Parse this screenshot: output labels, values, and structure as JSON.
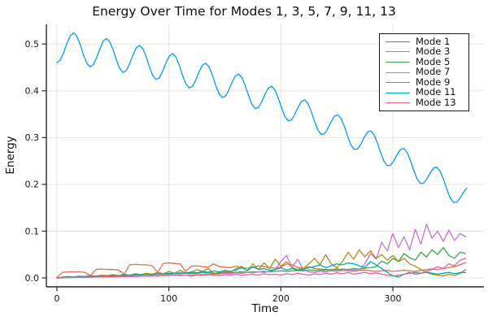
{
  "chart_data": {
    "type": "line",
    "title": "Energy Over Time for Modes 1, 3, 5, 7, 9, 11, 13",
    "xlabel": "Time",
    "ylabel": "Energy",
    "xlim": [
      -9.4,
      381.3
    ],
    "ylim": [
      -0.019,
      0.542
    ],
    "xticks": [
      0,
      100,
      200,
      300
    ],
    "yticks": [
      0.0,
      0.1,
      0.2,
      0.3,
      0.4,
      0.5
    ],
    "grid": true,
    "grid_color": "#e3e3e3",
    "axis_color": "#26262b",
    "background": "#ffffff",
    "legend_position": "top-right",
    "series": [
      {
        "name": "Mode 1",
        "color": "#009afa",
        "t0": 0,
        "dt": 2.95,
        "values": [
          0.4606,
          0.4653,
          0.4807,
          0.5007,
          0.5172,
          0.5237,
          0.5173,
          0.5001,
          0.4783,
          0.4598,
          0.4514,
          0.4556,
          0.4705,
          0.4898,
          0.5058,
          0.5118,
          0.5052,
          0.488,
          0.4663,
          0.4479,
          0.4392,
          0.4431,
          0.4574,
          0.4761,
          0.4914,
          0.4971,
          0.4903,
          0.4731,
          0.4514,
          0.433,
          0.4243,
          0.4277,
          0.4415,
          0.4595,
          0.4743,
          0.4795,
          0.4725,
          0.4553,
          0.4337,
          0.4154,
          0.4064,
          0.4095,
          0.4227,
          0.44,
          0.4542,
          0.459,
          0.4518,
          0.4346,
          0.4132,
          0.3948,
          0.3857,
          0.3884,
          0.401,
          0.4178,
          0.4314,
          0.4358,
          0.4284,
          0.4111,
          0.3898,
          0.3714,
          0.3622,
          0.3645,
          0.3766,
          0.3926,
          0.4057,
          0.4096,
          0.402,
          0.3848,
          0.3635,
          0.3452,
          0.3358,
          0.3378,
          0.3493,
          0.3647,
          0.3771,
          0.3807,
          0.3729,
          0.3557,
          0.3345,
          0.3162,
          0.3066,
          0.3082,
          0.3191,
          0.3339,
          0.3457,
          0.3489,
          0.3409,
          0.3237,
          0.3026,
          0.2843,
          0.2746,
          0.2758,
          0.2862,
          0.3003,
          0.3115,
          0.3143,
          0.3061,
          0.2889,
          0.2679,
          0.2496,
          0.2398,
          0.2406,
          0.2504,
          0.2639,
          0.2745,
          0.2769,
          0.2685,
          0.2513,
          0.2303,
          0.2121,
          0.2021,
          0.2026,
          0.2118,
          0.2246,
          0.2347,
          0.2366,
          0.228,
          0.2108,
          0.1899,
          0.1718,
          0.1616,
          0.1617,
          0.1703,
          0.1825,
          0.192
        ]
      },
      {
        "name": "Mode 3",
        "color": "#e36f47",
        "t0": 0,
        "dt": 5,
        "values": [
          0.001,
          0.012,
          0.013,
          0.013,
          0.013,
          0.012,
          0.005,
          0.018,
          0.019,
          0.018,
          0.018,
          0.017,
          0.008,
          0.028,
          0.029,
          0.028,
          0.028,
          0.026,
          0.012,
          0.031,
          0.032,
          0.031,
          0.03,
          0.014,
          0.025,
          0.026,
          0.024,
          0.023,
          0.03,
          0.024,
          0.023,
          0.022,
          0.025,
          0.022,
          0.021,
          0.022,
          0.026,
          0.024,
          0.022,
          0.021,
          0.023,
          0.03,
          0.028,
          0.022,
          0.021,
          0.024,
          0.02,
          0.019,
          0.018,
          0.017,
          0.02,
          0.016,
          0.015,
          0.014,
          0.016,
          0.017,
          0.015,
          0.014,
          0.015,
          0.016,
          0.014,
          0.015,
          0.016,
          0.015,
          0.014,
          0.016,
          0.018,
          0.019,
          0.018,
          0.02,
          0.022,
          0.024,
          0.028,
          0.033
        ]
      },
      {
        "name": "Mode 5",
        "color": "#3ea44e",
        "t0": 0,
        "dt": 5,
        "values": [
          0.0,
          0.001,
          0.001,
          0.002,
          0.002,
          0.002,
          0.003,
          0.003,
          0.004,
          0.004,
          0.004,
          0.005,
          0.005,
          0.006,
          0.006,
          0.007,
          0.007,
          0.007,
          0.008,
          0.008,
          0.008,
          0.009,
          0.009,
          0.01,
          0.01,
          0.01,
          0.011,
          0.011,
          0.01,
          0.011,
          0.012,
          0.011,
          0.012,
          0.013,
          0.012,
          0.013,
          0.013,
          0.014,
          0.013,
          0.014,
          0.015,
          0.014,
          0.015,
          0.016,
          0.015,
          0.017,
          0.016,
          0.017,
          0.016,
          0.018,
          0.017,
          0.019,
          0.018,
          0.02,
          0.019,
          0.021,
          0.022,
          0.024,
          0.036,
          0.03,
          0.042,
          0.035,
          0.052,
          0.043,
          0.038,
          0.055,
          0.045,
          0.06,
          0.05,
          0.065,
          0.048,
          0.042,
          0.055,
          0.052
        ]
      },
      {
        "name": "Mode 7",
        "color": "#c371d2",
        "t0": 0,
        "dt": 5,
        "values": [
          0.0,
          0.0,
          0.001,
          0.001,
          0.001,
          0.001,
          0.001,
          0.002,
          0.002,
          0.002,
          0.002,
          0.003,
          0.003,
          0.003,
          0.003,
          0.004,
          0.004,
          0.004,
          0.005,
          0.005,
          0.005,
          0.006,
          0.006,
          0.006,
          0.007,
          0.007,
          0.007,
          0.008,
          0.008,
          0.009,
          0.01,
          0.009,
          0.011,
          0.01,
          0.012,
          0.011,
          0.013,
          0.012,
          0.014,
          0.018,
          0.035,
          0.048,
          0.022,
          0.04,
          0.018,
          0.013,
          0.012,
          0.014,
          0.013,
          0.015,
          0.014,
          0.016,
          0.015,
          0.017,
          0.016,
          0.03,
          0.052,
          0.04,
          0.076,
          0.058,
          0.095,
          0.065,
          0.088,
          0.06,
          0.104,
          0.072,
          0.115,
          0.085,
          0.1,
          0.078,
          0.102,
          0.08,
          0.095,
          0.088
        ]
      },
      {
        "name": "Mode 9",
        "color": "#ac8e18",
        "t0": 0,
        "dt": 5,
        "values": [
          0.0,
          0.002,
          0.003,
          0.002,
          0.004,
          0.003,
          0.005,
          0.004,
          0.006,
          0.005,
          0.007,
          0.005,
          0.008,
          0.006,
          0.009,
          0.007,
          0.01,
          0.008,
          0.012,
          0.009,
          0.014,
          0.01,
          0.016,
          0.011,
          0.012,
          0.018,
          0.014,
          0.02,
          0.01,
          0.008,
          0.015,
          0.012,
          0.02,
          0.025,
          0.015,
          0.03,
          0.018,
          0.032,
          0.02,
          0.04,
          0.025,
          0.035,
          0.022,
          0.018,
          0.02,
          0.03,
          0.042,
          0.028,
          0.05,
          0.03,
          0.022,
          0.035,
          0.055,
          0.04,
          0.06,
          0.045,
          0.058,
          0.042,
          0.05,
          0.038,
          0.048,
          0.035,
          0.042,
          0.03,
          0.025,
          0.018,
          0.012,
          0.008,
          0.006,
          0.004,
          0.008,
          0.005,
          0.01,
          0.018
        ]
      },
      {
        "name": "Mode 11",
        "color": "#00aaae",
        "t0": 0,
        "dt": 5,
        "values": [
          0.0,
          0.001,
          0.002,
          0.002,
          0.003,
          0.002,
          0.003,
          0.004,
          0.003,
          0.004,
          0.005,
          0.004,
          0.006,
          0.005,
          0.007,
          0.006,
          0.008,
          0.007,
          0.009,
          0.008,
          0.01,
          0.009,
          0.011,
          0.01,
          0.013,
          0.011,
          0.014,
          0.012,
          0.015,
          0.013,
          0.016,
          0.014,
          0.017,
          0.022,
          0.016,
          0.024,
          0.018,
          0.02,
          0.016,
          0.018,
          0.022,
          0.017,
          0.02,
          0.016,
          0.018,
          0.022,
          0.024,
          0.028,
          0.022,
          0.026,
          0.03,
          0.028,
          0.032,
          0.03,
          0.026,
          0.022,
          0.035,
          0.028,
          0.02,
          0.012,
          0.005,
          0.002,
          0.008,
          0.012,
          0.008,
          0.01,
          0.012,
          0.01,
          0.008,
          0.01,
          0.012,
          0.009,
          0.011,
          0.012
        ]
      },
      {
        "name": "Mode 13",
        "color": "#ed5e93",
        "t0": 0,
        "dt": 5,
        "values": [
          0.0,
          0.001,
          0.001,
          0.001,
          0.002,
          0.001,
          0.002,
          0.002,
          0.002,
          0.003,
          0.002,
          0.003,
          0.003,
          0.004,
          0.003,
          0.004,
          0.004,
          0.005,
          0.004,
          0.005,
          0.005,
          0.006,
          0.005,
          0.006,
          0.004,
          0.006,
          0.005,
          0.007,
          0.006,
          0.005,
          0.007,
          0.006,
          0.008,
          0.006,
          0.007,
          0.008,
          0.006,
          0.009,
          0.007,
          0.008,
          0.006,
          0.009,
          0.007,
          0.01,
          0.008,
          0.006,
          0.009,
          0.007,
          0.01,
          0.008,
          0.011,
          0.009,
          0.012,
          0.008,
          0.01,
          0.012,
          0.009,
          0.011,
          0.008,
          0.006,
          0.004,
          0.006,
          0.008,
          0.01,
          0.012,
          0.01,
          0.014,
          0.018,
          0.024,
          0.02,
          0.03,
          0.026,
          0.038,
          0.042
        ]
      }
    ]
  }
}
